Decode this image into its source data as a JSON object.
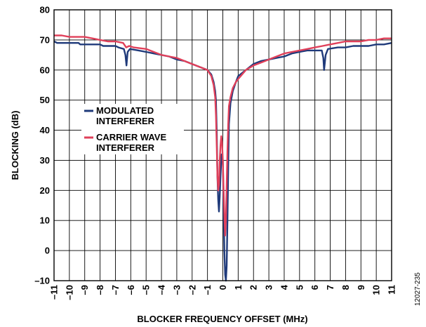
{
  "colors": {
    "modulated": "#1f3a7a",
    "carrier": "#e0405a",
    "grid": "#000000",
    "background": "#ffffff"
  },
  "figure_id": "12027-235",
  "chart_data": {
    "type": "line",
    "title": "",
    "xlabel": "BLOCKER FREQUENCY OFFSET (MHz)",
    "ylabel": "BLOCKING (dB)",
    "xlim": [
      -11,
      11
    ],
    "ylim": [
      -10,
      80
    ],
    "x_ticks": [
      -11,
      -10,
      -9,
      -8,
      -7,
      -6,
      -5,
      -4,
      -3,
      -2,
      -1,
      0,
      1,
      2,
      3,
      4,
      5,
      6,
      7,
      8,
      9,
      10,
      11
    ],
    "x_tick_labels": [
      "–11",
      "–10",
      "–9",
      "–8",
      "–7",
      "–6",
      "–5",
      "–4",
      "–3",
      "–2",
      "–1",
      "0",
      "1",
      "2",
      "3",
      "4",
      "5",
      "6",
      "7",
      "8",
      "9",
      "10",
      "11"
    ],
    "y_ticks": [
      -10,
      0,
      10,
      20,
      30,
      40,
      50,
      60,
      70,
      80
    ],
    "y_tick_labels": [
      "–10",
      "0",
      "10",
      "20",
      "30",
      "40",
      "50",
      "60",
      "70",
      "80"
    ],
    "grid": true,
    "legend_position": "left-center",
    "series": [
      {
        "name": "MODULATED INTERFERER",
        "legend_lines": [
          "MODULATED",
          "INTERFERER"
        ],
        "color": "#1f3a7a",
        "points": [
          [
            -11,
            69.5
          ],
          [
            -10.8,
            69
          ],
          [
            -10,
            69
          ],
          [
            -9.4,
            69
          ],
          [
            -9.3,
            68.5
          ],
          [
            -8,
            68.5
          ],
          [
            -7.8,
            68
          ],
          [
            -7,
            68
          ],
          [
            -6.8,
            67.5
          ],
          [
            -6.45,
            67
          ],
          [
            -6.35,
            65
          ],
          [
            -6.28,
            61.5
          ],
          [
            -6.2,
            66
          ],
          [
            -6.05,
            67
          ],
          [
            -5.5,
            66.5
          ],
          [
            -5,
            66
          ],
          [
            -4.5,
            65.5
          ],
          [
            -4,
            65
          ],
          [
            -3.5,
            64.5
          ],
          [
            -3,
            63.5
          ],
          [
            -2.5,
            63
          ],
          [
            -2,
            62
          ],
          [
            -1.5,
            61
          ],
          [
            -1,
            60
          ],
          [
            -0.75,
            58.5
          ],
          [
            -0.6,
            56
          ],
          [
            -0.5,
            53
          ],
          [
            -0.45,
            50
          ],
          [
            -0.4,
            40
          ],
          [
            -0.35,
            25
          ],
          [
            -0.3,
            17
          ],
          [
            -0.25,
            13
          ],
          [
            -0.2,
            18
          ],
          [
            -0.15,
            25
          ],
          [
            -0.08,
            32
          ],
          [
            0,
            30
          ],
          [
            0.05,
            15
          ],
          [
            0.1,
            0
          ],
          [
            0.15,
            -8
          ],
          [
            0.2,
            -10
          ],
          [
            0.25,
            -5
          ],
          [
            0.3,
            10
          ],
          [
            0.35,
            28
          ],
          [
            0.4,
            42
          ],
          [
            0.5,
            49
          ],
          [
            0.65,
            53
          ],
          [
            0.85,
            56
          ],
          [
            1,
            58
          ],
          [
            1.5,
            60
          ],
          [
            2,
            62
          ],
          [
            2.5,
            63
          ],
          [
            3,
            63.5
          ],
          [
            3.5,
            64
          ],
          [
            4,
            64.5
          ],
          [
            4.5,
            65.5
          ],
          [
            5,
            66
          ],
          [
            5.5,
            66.5
          ],
          [
            6,
            66.5
          ],
          [
            6.45,
            66.5
          ],
          [
            6.55,
            64
          ],
          [
            6.6,
            60
          ],
          [
            6.7,
            65
          ],
          [
            6.85,
            67
          ],
          [
            7.5,
            67.5
          ],
          [
            8,
            67.5
          ],
          [
            8.5,
            68
          ],
          [
            9,
            68
          ],
          [
            9.5,
            68
          ],
          [
            10,
            68.5
          ],
          [
            10.5,
            68.5
          ],
          [
            11,
            69
          ]
        ]
      },
      {
        "name": "CARRIER WAVE INTERFERER",
        "legend_lines": [
          "CARRIER WAVE",
          "INTERFERER"
        ],
        "color": "#e0405a",
        "points": [
          [
            -11,
            71.5
          ],
          [
            -10.5,
            71.5
          ],
          [
            -10,
            71
          ],
          [
            -9,
            71
          ],
          [
            -8.5,
            70.5
          ],
          [
            -8,
            70
          ],
          [
            -7.5,
            69.5
          ],
          [
            -7,
            69.5
          ],
          [
            -6.5,
            69
          ],
          [
            -6.3,
            67.5
          ],
          [
            -6.1,
            68
          ],
          [
            -5.8,
            67.5
          ],
          [
            -5,
            67
          ],
          [
            -4.5,
            66
          ],
          [
            -4,
            65
          ],
          [
            -3.5,
            64.5
          ],
          [
            -3,
            64
          ],
          [
            -2.5,
            63
          ],
          [
            -2,
            62
          ],
          [
            -1.5,
            61
          ],
          [
            -1,
            60
          ],
          [
            -0.75,
            58
          ],
          [
            -0.6,
            55
          ],
          [
            -0.5,
            51
          ],
          [
            -0.45,
            45
          ],
          [
            -0.4,
            35
          ],
          [
            -0.35,
            25
          ],
          [
            -0.3,
            20
          ],
          [
            -0.25,
            22
          ],
          [
            -0.2,
            30
          ],
          [
            -0.15,
            35
          ],
          [
            -0.1,
            38
          ],
          [
            -0.05,
            36
          ],
          [
            0,
            30
          ],
          [
            0.05,
            20
          ],
          [
            0.1,
            12
          ],
          [
            0.15,
            5
          ],
          [
            0.2,
            10
          ],
          [
            0.25,
            22
          ],
          [
            0.3,
            33
          ],
          [
            0.35,
            42
          ],
          [
            0.4,
            48
          ],
          [
            0.5,
            51
          ],
          [
            0.65,
            54
          ],
          [
            0.85,
            56
          ],
          [
            1,
            57
          ],
          [
            1.5,
            60
          ],
          [
            2,
            61.5
          ],
          [
            2.5,
            62.5
          ],
          [
            3,
            63.5
          ],
          [
            3.5,
            64.5
          ],
          [
            4,
            65.5
          ],
          [
            4.5,
            66
          ],
          [
            5,
            66.5
          ],
          [
            5.5,
            67
          ],
          [
            6,
            67.5
          ],
          [
            6.5,
            68
          ],
          [
            7,
            68.5
          ],
          [
            7.5,
            69
          ],
          [
            8,
            69.5
          ],
          [
            8.5,
            69.5
          ],
          [
            9,
            69.5
          ],
          [
            9.5,
            70
          ],
          [
            10,
            70
          ],
          [
            10.5,
            70.5
          ],
          [
            11,
            70.5
          ]
        ]
      }
    ]
  }
}
